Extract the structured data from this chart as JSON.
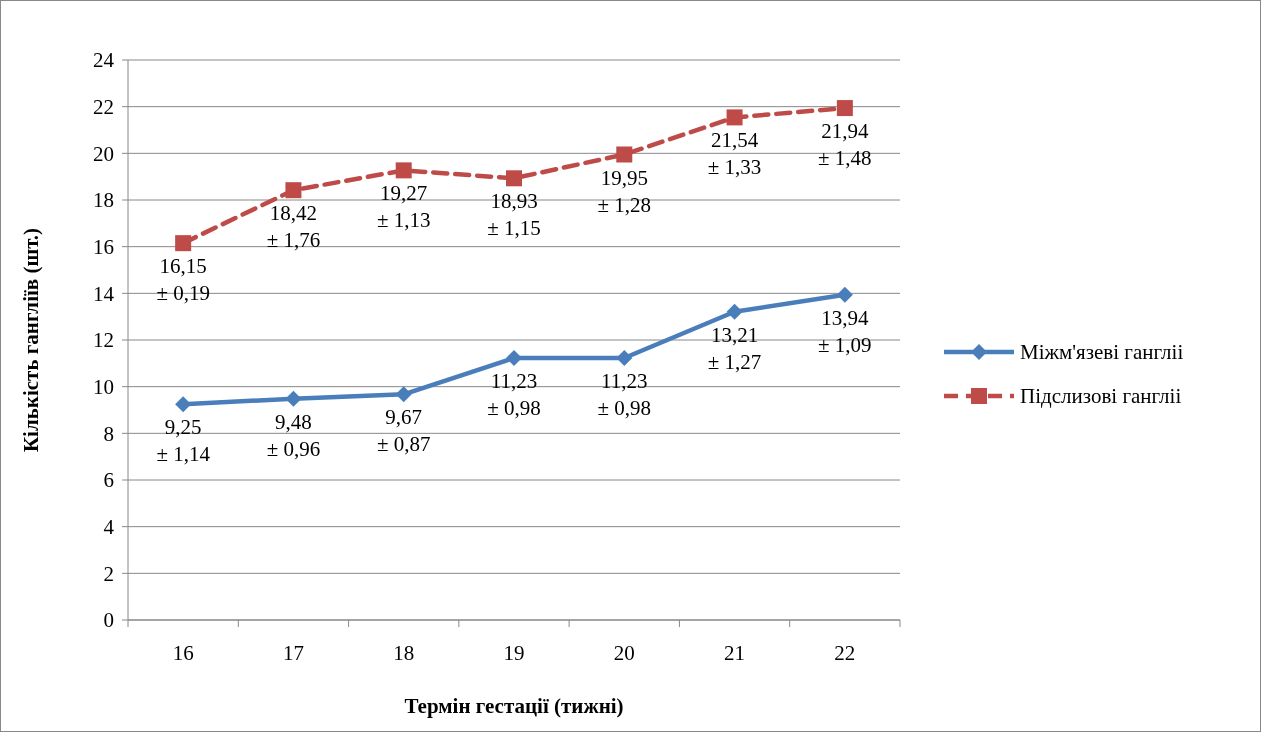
{
  "chart_data": {
    "type": "line",
    "xlabel": "Термін гестації (тижні)",
    "ylabel": "Кількість гангліїв (шт.)",
    "categories": [
      "16",
      "17",
      "18",
      "19",
      "20",
      "21",
      "22"
    ],
    "ylim": [
      0,
      24
    ],
    "yticks": [
      0,
      2,
      4,
      6,
      8,
      10,
      12,
      14,
      16,
      18,
      20,
      22,
      24
    ],
    "grid": "y",
    "legend": "right",
    "series": [
      {
        "name": "Міжм'язеві гангліі",
        "color": "#4a7ebb",
        "marker": "diamond",
        "line_style": "solid",
        "values": [
          9.25,
          9.48,
          9.67,
          11.23,
          11.23,
          13.21,
          13.94
        ],
        "value_labels": [
          "9,25\n± 1,14",
          "9,48\n± 0,96",
          "9,67\n± 0,87",
          "11,23\n± 0,98",
          "11,23\n± 0,98",
          "13,21\n± 1,27",
          "13,94\n± 1,09"
        ]
      },
      {
        "name": "Підслизові гангліі",
        "color": "#be4b48",
        "marker": "square",
        "line_style": "dashed",
        "values": [
          16.15,
          18.42,
          19.27,
          18.93,
          19.95,
          21.54,
          21.94
        ],
        "value_labels": [
          "16,15\n± 0,19",
          "18,42\n± 1,76",
          "19,27\n± 1,13",
          "18,93\n± 1,15",
          "19,95\n± 1,28",
          "21,54\n± 1,33",
          "21,94\n± 1,48"
        ]
      }
    ]
  }
}
